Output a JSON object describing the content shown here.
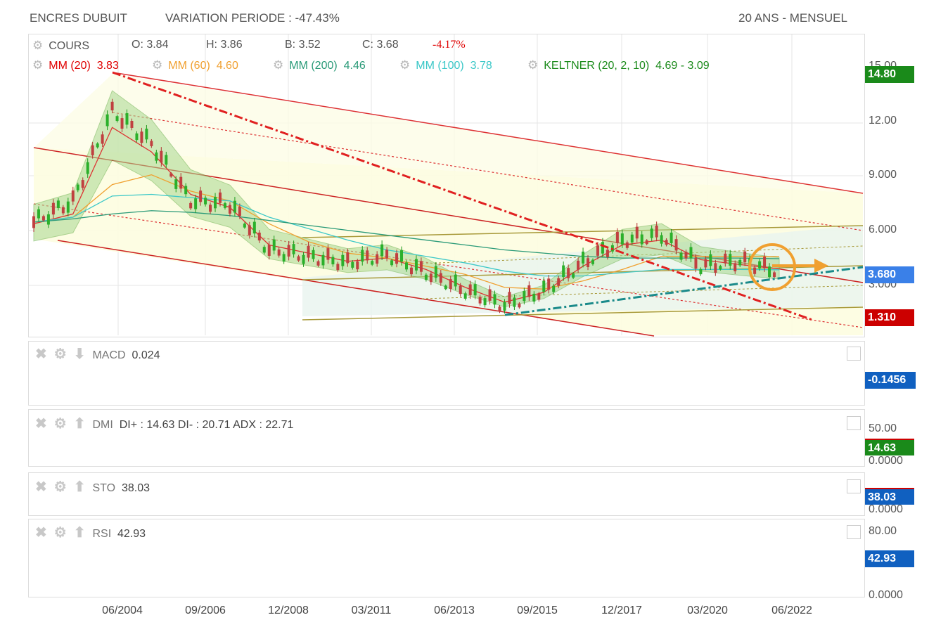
{
  "header": {
    "title": "ENCRES DUBUIT",
    "variation": "VARIATION PERIODE : -47.43%",
    "timeframe": "20 ANS - MENSUEL"
  },
  "ohlc": {
    "label": "COURS",
    "open": "O: 3.84",
    "high": "H: 3.86",
    "low": "B: 3.52",
    "close": "C: 3.68",
    "change": "-4.17%"
  },
  "indicators": [
    {
      "label": "MM (20)",
      "value": "3.83",
      "color": "#e00000"
    },
    {
      "label": "MM (60)",
      "value": "4.60",
      "color": "#f0a030"
    },
    {
      "label": "MM (200)",
      "value": "4.46",
      "color": "#2a9a78"
    },
    {
      "label": "MM (100)",
      "value": "3.78",
      "color": "#3cc8c8"
    },
    {
      "label": "KELTNER (20, 2, 10)",
      "value": "4.69 - 3.09",
      "color": "#1a8a1a"
    }
  ],
  "price_axis": {
    "ticks": [
      "15.00",
      "12.00",
      "9.000",
      "6.000",
      "3.000"
    ],
    "badges": [
      {
        "value": "14.80",
        "color": "#1a8a1a"
      },
      {
        "value": "3.680",
        "color": "#3a80e8"
      },
      {
        "value": "1.310",
        "color": "#cc0000"
      }
    ]
  },
  "macd": {
    "label": "MACD",
    "value": "0.024",
    "badge": "-0.1456",
    "badge_color": "#1060c0"
  },
  "dmi": {
    "label": "DMI",
    "value": "DI+ : 14.63 DI- : 20.71 ADX : 22.71",
    "ticks": [
      "50.00",
      "0.0000"
    ],
    "badge": "14.63",
    "badge_color": "#1a8a1a"
  },
  "sto": {
    "label": "STO",
    "value": "38.03",
    "ticks": [
      "0.0000"
    ],
    "badge": "38.03",
    "badge_color": "#1060c0"
  },
  "rsi": {
    "label": "RSI",
    "value": "42.93",
    "ticks": [
      "80.00",
      "0.0000"
    ],
    "badge": "42.93",
    "badge_color": "#1060c0"
  },
  "x_axis": {
    "labels": [
      "06/2004",
      "09/2006",
      "12/2008",
      "03/2011",
      "06/2013",
      "09/2015",
      "12/2017",
      "03/2020",
      "06/2022"
    ]
  },
  "chart_data": {
    "type": "line",
    "title": "ENCRES DUBUIT",
    "x": [
      "2002",
      "2003",
      "2004",
      "2005",
      "2006",
      "2007",
      "2008",
      "2009",
      "2010",
      "2011",
      "2012",
      "2013",
      "2014",
      "2015",
      "2016",
      "2017",
      "2018",
      "2019",
      "2020",
      "2021"
    ],
    "series": [
      {
        "name": "COURS",
        "values": [
          6.7,
          8.0,
          13.5,
          11.5,
          8.0,
          7.8,
          5.0,
          4.6,
          4.2,
          4.7,
          3.6,
          2.5,
          1.6,
          2.5,
          4.2,
          5.6,
          5.9,
          4.0,
          4.3,
          3.68
        ]
      },
      {
        "name": "MM (20)",
        "values": [
          6.6,
          7.2,
          12.5,
          11.0,
          8.4,
          7.6,
          5.3,
          4.8,
          4.3,
          4.5,
          3.8,
          2.7,
          1.8,
          2.4,
          4.0,
          5.3,
          5.6,
          4.4,
          4.1,
          3.83
        ]
      },
      {
        "name": "MM (60)",
        "values": [
          6.7,
          7.0,
          9.0,
          9.6,
          8.6,
          8.0,
          6.6,
          5.5,
          4.8,
          4.5,
          4.0,
          3.5,
          2.7,
          2.6,
          3.1,
          3.8,
          4.6,
          4.6,
          4.6,
          4.6
        ]
      },
      {
        "name": "MM (100)",
        "values": [
          6.7,
          7.0,
          8.3,
          8.4,
          8.2,
          8.0,
          7.0,
          6.3,
          5.6,
          5.0,
          4.6,
          4.2,
          3.7,
          3.4,
          3.4,
          3.6,
          3.8,
          3.8,
          3.8,
          3.78
        ]
      },
      {
        "name": "MM (200)",
        "values": [
          6.7,
          6.9,
          7.2,
          7.4,
          7.3,
          7.1,
          6.8,
          6.5,
          6.2,
          5.9,
          5.6,
          5.3,
          5.0,
          4.8,
          4.6,
          4.5,
          4.5,
          4.5,
          4.5,
          4.46
        ]
      }
    ],
    "ylim": [
      0.5,
      16
    ],
    "xlabel": "",
    "ylabel": "",
    "grid": true,
    "legend": "top-left"
  }
}
